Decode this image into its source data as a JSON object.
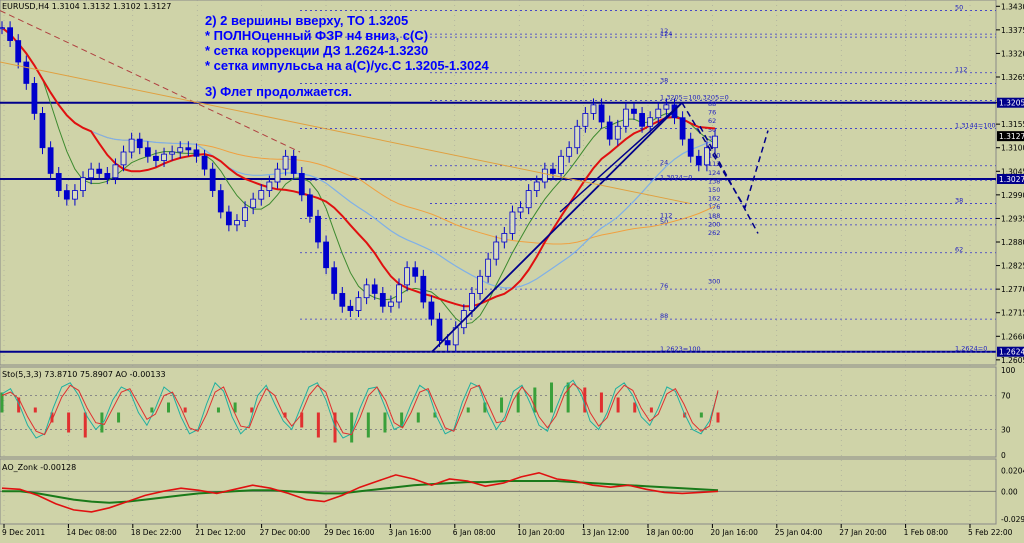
{
  "window": {
    "symbol_header": "EURUSD,H4  1.3104 1.3132 1.3102 1.3127"
  },
  "annotations": [
    "2) 2 вершины вверху, ТО 1.3205",
    "* ПОЛНОценный ФЗР н4 вниз, с(С)",
    "* сетка коррекции ДЗ 1.2624-1.3230",
    "* сетка импульсьа на а(С)/ус.С 1.3205-1.3024",
    "3) Флет продолжается."
  ],
  "colors": {
    "background": "#cfd3a8",
    "candle": "#0000cc",
    "ma_red": "#e01010",
    "ma_green": "#3d8a2f",
    "ma_lightblue": "#7fb0e8",
    "ma_orange": "#f0a040",
    "annotation": "#0000ff",
    "level": "#00008b",
    "stoch_main": "#20b0a0",
    "stoch_signal": "#e03030",
    "ao_up": "#3aa03a",
    "ao_down": "#e03030"
  },
  "chart_data": [
    {
      "type": "candlestick",
      "title": "EURUSD,H4",
      "ohlc_readout": {
        "open": 1.3104,
        "high": 1.3132,
        "low": 1.3102,
        "close": 1.3127
      },
      "ylim": [
        1.26,
        1.344
      ],
      "y_ticks": [
        "1.3430",
        "1.3375",
        "1.3320",
        "1.3265",
        "1.3205",
        "1.3155",
        "1.3100",
        "1.3045",
        "1.2990",
        "1.2935",
        "1.2880",
        "1.2825",
        "1.2770",
        "1.2715",
        "1.2660",
        "1.2605"
      ],
      "price_tags": [
        {
          "label": "1.3205",
          "value": 1.3205
        },
        {
          "label": "1.3127",
          "value": 1.3127
        },
        {
          "label": "1.3027",
          "value": 1.3027
        },
        {
          "label": "1.2624",
          "value": 1.2624
        }
      ],
      "x_ticks": [
        "9 Dec 2011",
        "14 Dec 08:00",
        "18 Dec 22:00",
        "21 Dec 12:00",
        "27 Dec 00:00",
        "29 Dec 16:00",
        "3 Jan 16:00",
        "6 Jan 08:00",
        "10 Jan 20:00",
        "13 Jan 12:00",
        "18 Jan 00:00",
        "20 Jan 16:00",
        "25 Jan 04:00",
        "27 Jan 20:00",
        "1 Feb 08:00",
        "5 Feb 22:00"
      ],
      "close_path": [
        1.338,
        1.335,
        1.33,
        1.325,
        1.318,
        1.31,
        1.304,
        1.3,
        1.298,
        1.3,
        1.303,
        1.305,
        1.304,
        1.303,
        1.306,
        1.309,
        1.312,
        1.31,
        1.308,
        1.307,
        1.3085,
        1.309,
        1.31,
        1.3095,
        1.308,
        1.305,
        1.3,
        1.295,
        1.292,
        1.293,
        1.296,
        1.298,
        1.3,
        1.302,
        1.305,
        1.308,
        1.304,
        1.299,
        1.294,
        1.288,
        1.282,
        1.276,
        1.273,
        1.272,
        1.275,
        1.278,
        1.276,
        1.273,
        1.274,
        1.278,
        1.282,
        1.28,
        1.274,
        1.27,
        1.265,
        1.264,
        1.268,
        1.272,
        1.276,
        1.28,
        1.284,
        1.288,
        1.29,
        1.295,
        1.296,
        1.3,
        1.302,
        1.305,
        1.304,
        1.308,
        1.31,
        1.315,
        1.318,
        1.32,
        1.316,
        1.312,
        1.315,
        1.319,
        1.318,
        1.315,
        1.317,
        1.319,
        1.32,
        1.317,
        1.312,
        1.308,
        1.306,
        1.31,
        1.3127
      ],
      "fib_levels_left": [
        {
          "label": "50",
          "value": 1.342
        },
        {
          "label": "12",
          "value": 1.3365
        },
        {
          "label": "124",
          "value": 1.3358
        },
        {
          "label": "112",
          "value": 1.3275
        },
        {
          "label": "38",
          "value": 1.325
        },
        {
          "label": "1.3205=100.3205=0",
          "value": 1.321
        },
        {
          "label": "1.3144=100",
          "value": 1.3145
        },
        {
          "label": "24",
          "value": 1.3058
        },
        {
          "label": "1.3024=0",
          "value": 1.3024
        },
        {
          "label": "38",
          "value": 1.297
        },
        {
          "label": "112",
          "value": 1.2935
        },
        {
          "label": "50",
          "value": 1.292
        },
        {
          "label": "62",
          "value": 1.2855
        },
        {
          "label": "76",
          "value": 1.277
        },
        {
          "label": "88",
          "value": 1.27
        },
        {
          "label": "1.2624=0",
          "value": 1.2624
        },
        {
          "label": "1.2623=100",
          "value": 1.2623
        }
      ],
      "fib_impulse_labels": [
        "88",
        "76",
        "62",
        "50",
        "38",
        "24",
        "100",
        "112",
        "124",
        "138",
        "150",
        "162",
        "176",
        "188",
        "200",
        "262",
        "300"
      ]
    },
    {
      "type": "line",
      "title": "Sto(5,3,3) 73.8710 75.8907  AO -0.00133",
      "ylim": [
        0,
        100
      ],
      "y_ticks": [
        "100",
        "70",
        "30",
        "0"
      ],
      "series": [
        {
          "name": "main",
          "values": [
            72,
            78,
            60,
            35,
            20,
            25,
            55,
            80,
            85,
            70,
            45,
            30,
            40,
            65,
            80,
            75,
            50,
            35,
            55,
            80,
            72,
            45,
            25,
            30,
            60,
            85,
            75,
            45,
            25,
            35,
            70,
            82,
            60,
            40,
            30,
            55,
            80,
            85,
            65,
            35,
            20,
            25,
            55,
            78,
            80,
            55,
            30,
            35,
            60,
            82,
            75,
            45,
            25,
            30,
            62,
            85,
            80,
            50,
            30,
            45,
            75,
            82,
            60,
            35,
            28,
            55,
            80,
            88,
            70,
            40,
            30,
            50,
            78,
            85,
            70,
            45,
            35,
            55,
            80,
            75,
            50,
            30,
            25,
            40,
            74
          ]
        },
        {
          "name": "signal",
          "values": [
            70,
            74,
            66,
            45,
            28,
            24,
            44,
            68,
            82,
            76,
            55,
            38,
            36,
            55,
            74,
            78,
            60,
            42,
            48,
            70,
            74,
            55,
            32,
            28,
            48,
            74,
            80,
            56,
            34,
            32,
            58,
            78,
            70,
            48,
            34,
            46,
            70,
            82,
            74,
            45,
            26,
            24,
            44,
            70,
            80,
            64,
            38,
            32,
            50,
            74,
            78,
            55,
            32,
            28,
            52,
            78,
            82,
            60,
            38,
            40,
            65,
            80,
            68,
            45,
            32,
            46,
            72,
            84,
            76,
            50,
            34,
            44,
            70,
            82,
            76,
            55,
            40,
            48,
            72,
            78,
            60,
            38,
            28,
            34,
            76
          ]
        },
        {
          "name": "AO",
          "values": [
            0.004,
            0.003,
            0.001,
            -0.002,
            -0.004,
            -0.005,
            -0.004,
            -0.002,
            0.0,
            0.001,
            0.002,
            0.001,
            0.0,
            0.001,
            0.002,
            0.001,
            0.0,
            -0.001,
            -0.003,
            -0.005,
            -0.006,
            -0.006,
            -0.005,
            -0.004,
            -0.003,
            -0.002,
            -0.001,
            0.0,
            0.001,
            0.002,
            0.003,
            0.004,
            0.005,
            0.006,
            0.006,
            0.005,
            0.004,
            0.003,
            0.002,
            0.001,
            0.0,
            -0.001,
            -0.001,
            -0.002
          ]
        }
      ]
    },
    {
      "type": "line",
      "title": "AO_Zonk -0.00128",
      "ylim": [
        -0.0298,
        0.0285
      ],
      "y_ticks": [
        "0.02040",
        "0.00",
        "-0.02904"
      ],
      "series": [
        {
          "name": "red",
          "values": [
            0.003,
            0.002,
            -0.004,
            -0.012,
            -0.018,
            -0.02,
            -0.016,
            -0.01,
            -0.004,
            0.0,
            0.003,
            0.001,
            -0.002,
            0.002,
            0.006,
            0.003,
            -0.002,
            -0.008,
            -0.01,
            -0.004,
            0.004,
            0.01,
            0.016,
            0.012,
            0.006,
            0.012,
            0.01,
            0.005,
            0.008,
            0.014,
            0.018,
            0.012,
            0.01,
            0.006,
            0.004,
            0.006,
            0.002,
            -0.001,
            -0.002,
            -0.001,
            0.0
          ]
        },
        {
          "name": "green",
          "values": [
            0.0,
            0.0,
            -0.002,
            -0.005,
            -0.008,
            -0.01,
            -0.011,
            -0.01,
            -0.008,
            -0.006,
            -0.004,
            -0.002,
            -0.001,
            0.0,
            0.001,
            0.001,
            0.0,
            -0.001,
            -0.002,
            -0.002,
            0.0,
            0.002,
            0.004,
            0.006,
            0.007,
            0.008,
            0.009,
            0.009,
            0.01,
            0.01,
            0.01,
            0.01,
            0.009,
            0.008,
            0.007,
            0.006,
            0.005,
            0.004,
            0.003,
            0.002,
            0.001
          ]
        }
      ]
    }
  ]
}
